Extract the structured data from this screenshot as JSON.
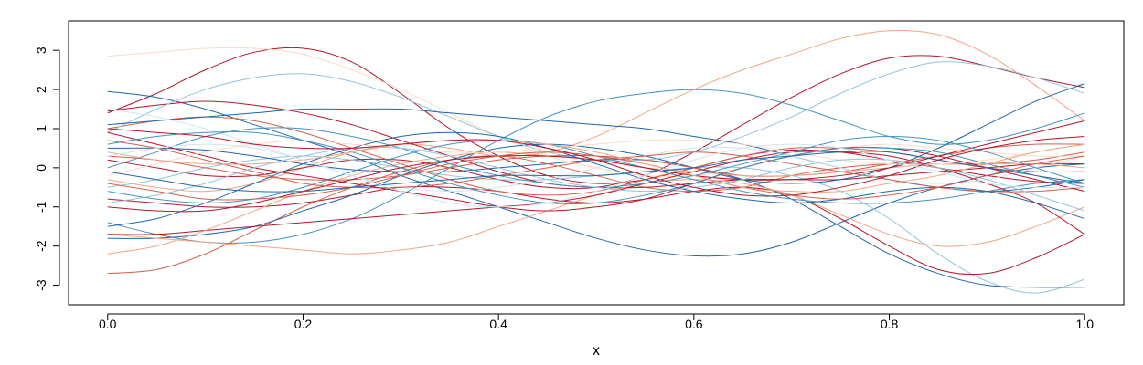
{
  "chart_data": {
    "type": "line",
    "title": "",
    "xlabel": "x",
    "ylabel": "",
    "xlim": [
      -0.04,
      1.04
    ],
    "ylim": [
      -3.5,
      3.75
    ],
    "x_ticks": [
      0.0,
      0.2,
      0.4,
      0.6,
      0.8,
      1.0
    ],
    "x_tick_labels": [
      "0.0",
      "0.2",
      "0.4",
      "0.6",
      "0.8",
      "1.0"
    ],
    "y_ticks": [
      -3,
      -2,
      -1,
      0,
      1,
      2,
      3
    ],
    "y_tick_labels": [
      "-3",
      "-2",
      "-1",
      "0",
      "1",
      "2",
      "3"
    ],
    "grid": false,
    "legend": "none",
    "colors": [
      "#b2182b",
      "#d6604d",
      "#f4a582",
      "#fddbc7",
      "#d1e5f0",
      "#92c5de",
      "#4393c3",
      "#2166ac"
    ],
    "x": [
      0.0,
      0.05,
      0.1,
      0.15,
      0.2,
      0.25,
      0.3,
      0.35,
      0.4,
      0.45,
      0.5,
      0.55,
      0.6,
      0.65,
      0.7,
      0.75,
      0.8,
      0.85,
      0.9,
      0.95,
      1.0
    ],
    "series": [
      {
        "color": "#b2182b",
        "values": [
          1.4,
          1.9,
          2.5,
          2.95,
          3.05,
          2.7,
          1.9,
          1.0,
          0.3,
          -0.2,
          -0.4,
          -0.3,
          0.0,
          0.3,
          0.45,
          0.4,
          0.2,
          0.0,
          -0.2,
          -0.35,
          -0.4
        ]
      },
      {
        "color": "#2166ac",
        "values": [
          1.95,
          1.8,
          1.5,
          1.1,
          0.7,
          0.3,
          -0.2,
          -0.6,
          -1.0,
          -1.4,
          -1.8,
          -2.1,
          -2.25,
          -2.2,
          -1.9,
          -1.4,
          -0.9,
          -0.5,
          -0.2,
          0.0,
          0.1
        ]
      },
      {
        "color": "#f4a582",
        "values": [
          -0.3,
          -0.5,
          -0.6,
          -0.4,
          0.0,
          0.4,
          0.6,
          0.5,
          0.3,
          0.4,
          0.8,
          1.4,
          2.0,
          2.5,
          2.9,
          3.3,
          3.5,
          3.4,
          2.9,
          2.1,
          1.2
        ]
      },
      {
        "color": "#b2182b",
        "values": [
          0.2,
          0.0,
          -0.2,
          -0.2,
          0.0,
          0.2,
          0.2,
          0.0,
          -0.3,
          -0.5,
          -0.5,
          -0.2,
          0.4,
          1.1,
          1.8,
          2.4,
          2.8,
          2.85,
          2.6,
          2.3,
          2.05
        ]
      },
      {
        "color": "#92c5de",
        "values": [
          -0.5,
          -0.3,
          0.0,
          0.2,
          0.3,
          0.2,
          0.0,
          -0.2,
          -0.3,
          -0.3,
          -0.2,
          -0.1,
          0.0,
          0.0,
          -0.2,
          -0.6,
          -1.3,
          -2.2,
          -2.9,
          -3.2,
          -2.85
        ]
      },
      {
        "color": "#2166ac",
        "values": [
          0.5,
          0.5,
          0.45,
          0.3,
          0.1,
          -0.05,
          -0.1,
          -0.1,
          0.0,
          0.1,
          0.2,
          0.2,
          0.0,
          -0.3,
          -0.8,
          -1.5,
          -2.2,
          -2.7,
          -3.0,
          -3.05,
          -3.05
        ]
      },
      {
        "color": "#b2182b",
        "values": [
          -0.8,
          -0.9,
          -1.0,
          -1.0,
          -0.9,
          -0.7,
          -0.5,
          -0.5,
          -0.6,
          -0.8,
          -0.9,
          -0.8,
          -0.6,
          -0.5,
          -0.7,
          -1.3,
          -2.0,
          -2.6,
          -2.7,
          -2.3,
          -1.7
        ]
      },
      {
        "color": "#d6604d",
        "values": [
          -2.7,
          -2.6,
          -2.2,
          -1.6,
          -1.0,
          -0.5,
          -0.1,
          0.2,
          0.3,
          0.1,
          -0.2,
          -0.5,
          -0.6,
          -0.5,
          -0.2,
          0.0,
          0.1,
          0.1,
          0.1,
          0.2,
          0.4
        ]
      },
      {
        "color": "#fddbc7",
        "values": [
          2.85,
          2.95,
          3.05,
          3.05,
          2.9,
          2.5,
          2.0,
          1.4,
          0.8,
          0.3,
          0.0,
          -0.2,
          -0.2,
          0.0,
          0.3,
          0.5,
          0.6,
          0.5,
          0.4,
          0.3,
          0.3
        ]
      },
      {
        "color": "#4393c3",
        "values": [
          -1.4,
          -1.7,
          -1.9,
          -1.9,
          -1.7,
          -1.3,
          -0.7,
          0.0,
          0.7,
          1.3,
          1.7,
          1.9,
          2.0,
          1.9,
          1.6,
          1.2,
          0.8,
          0.6,
          0.7,
          1.0,
          1.4
        ]
      },
      {
        "color": "#b2182b",
        "values": [
          1.45,
          1.6,
          1.7,
          1.6,
          1.4,
          1.1,
          0.7,
          0.3,
          -0.1,
          -0.4,
          -0.5,
          -0.5,
          -0.4,
          -0.3,
          -0.3,
          -0.3,
          -0.2,
          -0.1,
          0.0,
          0.1,
          0.1
        ]
      },
      {
        "color": "#2166ac",
        "values": [
          -1.8,
          -1.8,
          -1.7,
          -1.5,
          -1.1,
          -0.7,
          -0.2,
          0.2,
          0.5,
          0.6,
          0.5,
          0.3,
          0.0,
          -0.3,
          -0.4,
          -0.3,
          0.0,
          0.5,
          1.1,
          1.7,
          2.15
        ]
      },
      {
        "color": "#f4a582",
        "values": [
          -1.7,
          -1.8,
          -1.9,
          -2.0,
          -2.1,
          -2.2,
          -2.1,
          -1.9,
          -1.5,
          -1.1,
          -0.7,
          -0.4,
          -0.3,
          -0.4,
          -0.7,
          -1.2,
          -1.7,
          -2.0,
          -1.9,
          -1.5,
          -1.0
        ]
      },
      {
        "color": "#d6604d",
        "values": [
          1.0,
          1.2,
          1.3,
          1.2,
          0.9,
          0.5,
          0.1,
          -0.3,
          -0.6,
          -0.7,
          -0.6,
          -0.3,
          0.0,
          0.3,
          0.5,
          0.5,
          0.4,
          0.2,
          0.0,
          -0.1,
          -0.1
        ]
      },
      {
        "color": "#92c5de",
        "values": [
          0.9,
          1.5,
          2.0,
          2.3,
          2.4,
          2.2,
          1.8,
          1.3,
          0.8,
          0.4,
          0.2,
          0.2,
          0.4,
          0.8,
          1.3,
          1.9,
          2.4,
          2.7,
          2.6,
          2.3,
          1.9
        ]
      },
      {
        "color": "#4393c3",
        "values": [
          -0.6,
          -0.8,
          -0.9,
          -0.8,
          -0.5,
          -0.1,
          0.3,
          0.6,
          0.7,
          0.6,
          0.3,
          0.0,
          -0.3,
          -0.6,
          -0.8,
          -0.9,
          -0.9,
          -0.8,
          -0.6,
          -0.4,
          -0.3
        ]
      },
      {
        "color": "#b2182b",
        "values": [
          -1.7,
          -1.7,
          -1.6,
          -1.5,
          -1.4,
          -1.3,
          -1.2,
          -1.1,
          -1.0,
          -0.9,
          -0.7,
          -0.4,
          -0.1,
          0.2,
          0.4,
          0.4,
          0.3,
          0.0,
          -0.4,
          -0.9,
          -1.7
        ]
      },
      {
        "color": "#d6604d",
        "values": [
          0.3,
          0.2,
          0.0,
          -0.2,
          -0.3,
          -0.3,
          -0.2,
          0.0,
          0.2,
          0.3,
          0.3,
          0.2,
          0.0,
          -0.2,
          -0.2,
          -0.1,
          0.1,
          0.3,
          0.5,
          0.6,
          0.6
        ]
      },
      {
        "color": "#2166ac",
        "values": [
          1.1,
          1.2,
          1.3,
          1.4,
          1.5,
          1.5,
          1.5,
          1.4,
          1.3,
          1.2,
          1.1,
          1.0,
          0.8,
          0.6,
          0.3,
          0.0,
          -0.3,
          -0.5,
          -0.6,
          -0.5,
          -0.3
        ]
      },
      {
        "color": "#d1e5f0",
        "values": [
          1.5,
          1.3,
          1.0,
          0.6,
          0.2,
          -0.2,
          -0.5,
          -0.6,
          -0.5,
          -0.3,
          0.0,
          0.3,
          0.5,
          0.5,
          0.3,
          0.0,
          -0.3,
          -0.4,
          -0.3,
          0.0,
          0.3
        ]
      },
      {
        "color": "#f4a582",
        "values": [
          -2.2,
          -2.0,
          -1.6,
          -1.1,
          -0.6,
          -0.2,
          0.1,
          0.3,
          0.4,
          0.3,
          0.2,
          0.0,
          -0.1,
          -0.2,
          -0.2,
          -0.1,
          0.0,
          0.1,
          0.1,
          0.1,
          0.0
        ]
      },
      {
        "color": "#b2182b",
        "values": [
          -1.0,
          -1.1,
          -1.1,
          -0.9,
          -0.6,
          -0.3,
          0.0,
          0.2,
          0.3,
          0.3,
          0.2,
          0.0,
          -0.2,
          -0.3,
          -0.3,
          -0.2,
          0.0,
          0.3,
          0.6,
          0.9,
          1.2
        ]
      },
      {
        "color": "#4393c3",
        "values": [
          0.0,
          0.4,
          0.8,
          1.0,
          1.0,
          0.8,
          0.5,
          0.1,
          -0.2,
          -0.4,
          -0.5,
          -0.4,
          -0.2,
          0.1,
          0.4,
          0.7,
          0.8,
          0.7,
          0.4,
          0.0,
          -0.4
        ]
      },
      {
        "color": "#d6604d",
        "values": [
          0.7,
          0.5,
          0.2,
          -0.1,
          -0.4,
          -0.5,
          -0.5,
          -0.4,
          -0.2,
          0.0,
          0.2,
          0.3,
          0.4,
          0.3,
          0.1,
          -0.1,
          -0.3,
          -0.5,
          -0.6,
          -0.6,
          -0.5
        ]
      },
      {
        "color": "#2166ac",
        "values": [
          -1.5,
          -1.3,
          -0.9,
          -0.4,
          0.1,
          0.5,
          0.8,
          0.9,
          0.8,
          0.5,
          0.1,
          -0.3,
          -0.6,
          -0.8,
          -0.9,
          -0.8,
          -0.6,
          -0.5,
          -0.6,
          -0.9,
          -1.3
        ]
      },
      {
        "color": "#b2182b",
        "values": [
          0.9,
          0.6,
          0.3,
          0.0,
          -0.2,
          -0.4,
          -0.6,
          -0.8,
          -1.0,
          -1.1,
          -1.0,
          -0.8,
          -0.4,
          0.0,
          0.3,
          0.5,
          0.5,
          0.3,
          0.0,
          -0.3,
          -0.6
        ]
      },
      {
        "color": "#fddbc7",
        "values": [
          -0.2,
          0.1,
          0.4,
          0.6,
          0.7,
          0.6,
          0.5,
          0.4,
          0.4,
          0.5,
          0.6,
          0.7,
          0.7,
          0.6,
          0.4,
          0.2,
          0.1,
          0.1,
          0.2,
          0.4,
          0.6
        ]
      },
      {
        "color": "#92c5de",
        "values": [
          -0.9,
          -0.7,
          -0.4,
          0.0,
          0.3,
          0.5,
          0.5,
          0.3,
          0.0,
          -0.3,
          -0.5,
          -0.6,
          -0.5,
          -0.3,
          0.0,
          0.2,
          0.2,
          0.0,
          -0.3,
          -0.7,
          -1.1
        ]
      },
      {
        "color": "#d6604d",
        "values": [
          -0.4,
          -0.6,
          -0.8,
          -0.8,
          -0.7,
          -0.5,
          -0.2,
          0.1,
          0.3,
          0.4,
          0.3,
          0.1,
          -0.2,
          -0.5,
          -0.7,
          -0.8,
          -0.7,
          -0.5,
          -0.2,
          0.1,
          0.3
        ]
      },
      {
        "color": "#4393c3",
        "values": [
          0.6,
          0.8,
          0.9,
          0.9,
          0.7,
          0.4,
          0.0,
          -0.4,
          -0.7,
          -0.9,
          -0.9,
          -0.7,
          -0.4,
          0.0,
          0.3,
          0.5,
          0.5,
          0.4,
          0.1,
          -0.2,
          -0.5
        ]
      },
      {
        "color": "#f4a582",
        "values": [
          0.4,
          0.2,
          0.1,
          0.1,
          0.2,
          0.4,
          0.6,
          0.7,
          0.7,
          0.6,
          0.4,
          0.1,
          -0.2,
          -0.5,
          -0.6,
          -0.6,
          -0.4,
          -0.2,
          0.1,
          0.4,
          0.6
        ]
      },
      {
        "color": "#2166ac",
        "values": [
          -0.1,
          -0.3,
          -0.5,
          -0.6,
          -0.6,
          -0.5,
          -0.4,
          -0.3,
          -0.2,
          -0.2,
          -0.2,
          -0.1,
          0.0,
          0.2,
          0.3,
          0.4,
          0.4,
          0.2,
          0.0,
          -0.2,
          -0.4
        ]
      },
      {
        "color": "#b2182b",
        "values": [
          1.0,
          0.9,
          0.8,
          0.6,
          0.5,
          0.5,
          0.6,
          0.7,
          0.7,
          0.5,
          0.2,
          -0.2,
          -0.5,
          -0.7,
          -0.7,
          -0.5,
          -0.2,
          0.2,
          0.5,
          0.7,
          0.8
        ]
      },
      {
        "color": "#d1e5f0",
        "values": [
          0.3,
          0.5,
          0.6,
          0.5,
          0.2,
          -0.2,
          -0.6,
          -0.9,
          -1.0,
          -0.9,
          -0.6,
          -0.2,
          0.2,
          0.5,
          0.6,
          0.5,
          0.2,
          -0.1,
          -0.4,
          -0.5,
          -0.5
        ]
      }
    ]
  }
}
